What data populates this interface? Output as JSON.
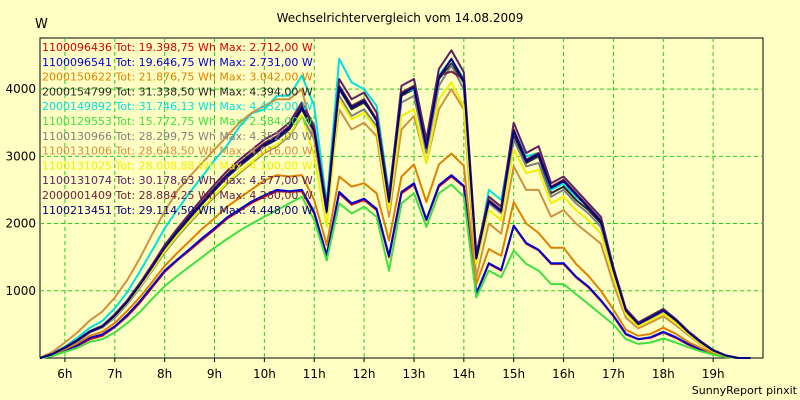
{
  "chart_data": {
    "type": "line",
    "title": "Wechselrichtervergleich vom 14.08.2009",
    "ylabel": "W",
    "footer": "SunnyReport pinxit",
    "ylim": [
      0,
      4760
    ],
    "xlim": [
      5.5,
      20.0
    ],
    "grid": true,
    "legend_position": "top-left",
    "y_ticks": [
      1000,
      2000,
      3000,
      4000
    ],
    "x_ticks": [
      {
        "value": 6,
        "label": "6h"
      },
      {
        "value": 7,
        "label": "7h"
      },
      {
        "value": 8,
        "label": "8h"
      },
      {
        "value": 9,
        "label": "9h"
      },
      {
        "value": 10,
        "label": "10h"
      },
      {
        "value": 11,
        "label": "11h"
      },
      {
        "value": 12,
        "label": "12h"
      },
      {
        "value": 13,
        "label": "13h"
      },
      {
        "value": 14,
        "label": "14h"
      },
      {
        "value": 15,
        "label": "15h"
      },
      {
        "value": 16,
        "label": "16h"
      },
      {
        "value": 17,
        "label": "17h"
      },
      {
        "value": 18,
        "label": "18h"
      },
      {
        "value": 19,
        "label": "19h"
      }
    ],
    "x": [
      5.5,
      5.75,
      6,
      6.25,
      6.5,
      6.75,
      7,
      7.25,
      7.5,
      7.75,
      8,
      8.25,
      8.5,
      8.75,
      9,
      9.25,
      9.5,
      9.75,
      10,
      10.25,
      10.5,
      10.75,
      11,
      11.25,
      11.5,
      11.75,
      12,
      12.25,
      12.5,
      12.75,
      13,
      13.25,
      13.5,
      13.75,
      14,
      14.25,
      14.5,
      14.75,
      15,
      15.25,
      15.5,
      15.75,
      16,
      16.25,
      16.5,
      16.75,
      17,
      17.25,
      17.5,
      17.75,
      18,
      18.25,
      18.5,
      18.75,
      19,
      19.25,
      19.5,
      19.75
    ],
    "series": [
      {
        "name": "1100096436 Tot: 19.398,75 Wh Max: 2.712,00 W",
        "color": "#d80000",
        "values": [
          0,
          40,
          110,
          180,
          280,
          330,
          460,
          620,
          820,
          1050,
          1280,
          1450,
          1600,
          1760,
          1910,
          2070,
          2190,
          2310,
          2400,
          2480,
          2470,
          2480,
          2150,
          1520,
          2450,
          2280,
          2350,
          2200,
          1500,
          2450,
          2580,
          2050,
          2550,
          2700,
          2550,
          950,
          1400,
          1300,
          1960,
          1700,
          1600,
          1400,
          1400,
          1200,
          1050,
          850,
          620,
          350,
          280,
          300,
          380,
          300,
          200,
          120,
          60,
          20,
          0,
          0
        ]
      },
      {
        "name": "1100096541 Tot: 19.646,75 Wh Max: 2.731,00 W",
        "color": "#0000d8",
        "values": [
          0,
          40,
          110,
          190,
          300,
          350,
          470,
          640,
          840,
          1070,
          1300,
          1460,
          1620,
          1780,
          1930,
          2090,
          2210,
          2330,
          2420,
          2500,
          2480,
          2500,
          2170,
          1530,
          2470,
          2300,
          2370,
          2220,
          1520,
          2470,
          2600,
          2060,
          2570,
          2720,
          2560,
          960,
          1410,
          1310,
          1970,
          1710,
          1610,
          1410,
          1410,
          1210,
          1060,
          860,
          630,
          360,
          280,
          310,
          390,
          310,
          210,
          130,
          60,
          20,
          0,
          0
        ]
      },
      {
        "name": "2000150622 Tot: 21.876,75 Wh Max: 3.042,00 W",
        "color": "#e08000",
        "values": [
          0,
          50,
          130,
          220,
          330,
          390,
          520,
          700,
          900,
          1130,
          1370,
          1560,
          1740,
          1920,
          2080,
          2250,
          2380,
          2510,
          2640,
          2720,
          2700,
          2720,
          2350,
          1680,
          2700,
          2550,
          2600,
          2450,
          1750,
          2700,
          2880,
          2320,
          2880,
          3040,
          2860,
          1100,
          1620,
          1520,
          2320,
          2000,
          1860,
          1640,
          1640,
          1400,
          1220,
          1000,
          720,
          420,
          330,
          360,
          450,
          360,
          240,
          150,
          70,
          25,
          0,
          0
        ]
      },
      {
        "name": "2000154799 Tot: 31.338,50 Wh Max: 4.394,00 W",
        "color": "#282828",
        "values": [
          0,
          60,
          150,
          260,
          390,
          470,
          630,
          830,
          1080,
          1350,
          1630,
          1860,
          2080,
          2290,
          2490,
          2690,
          2850,
          3000,
          3150,
          3250,
          3400,
          3700,
          3350,
          2200,
          4000,
          3700,
          3800,
          3550,
          2350,
          3900,
          4000,
          3100,
          4150,
          4380,
          4100,
          1500,
          2350,
          2200,
          3300,
          2900,
          3000,
          2450,
          2550,
          2350,
          2200,
          2000,
          1300,
          700,
          500,
          600,
          700,
          560,
          380,
          230,
          110,
          40,
          0,
          0
        ]
      },
      {
        "name": "2000149892 Tot: 31.746,13 Wh Max: 4.432,00 W",
        "color": "#00e0e0",
        "values": [
          0,
          70,
          170,
          300,
          450,
          550,
          740,
          980,
          1280,
          1600,
          1930,
          2200,
          2460,
          2700,
          2940,
          3160,
          3440,
          3640,
          3700,
          3900,
          3900,
          4200,
          3750,
          2300,
          4450,
          4100,
          4000,
          3750,
          2450,
          3950,
          4000,
          3150,
          4200,
          4450,
          4150,
          1450,
          2500,
          2350,
          3380,
          3000,
          3050,
          2500,
          2600,
          2400,
          2250,
          2050,
          1350,
          720,
          520,
          620,
          720,
          570,
          390,
          240,
          110,
          40,
          0,
          0
        ]
      },
      {
        "name": "1100129553 Tot: 15.772,75 Wh Max: 2.584,00 W",
        "color": "#40e040",
        "values": [
          0,
          30,
          90,
          150,
          240,
          280,
          380,
          520,
          680,
          880,
          1070,
          1220,
          1360,
          1500,
          1640,
          1770,
          1890,
          2000,
          2100,
          2200,
          2300,
          2400,
          2050,
          1450,
          2300,
          2150,
          2250,
          2100,
          1300,
          2300,
          2450,
          1950,
          2450,
          2580,
          2400,
          900,
          1300,
          1200,
          1600,
          1400,
          1300,
          1100,
          1100,
          950,
          800,
          650,
          500,
          280,
          210,
          230,
          290,
          230,
          160,
          100,
          50,
          15,
          0,
          0
        ]
      },
      {
        "name": "1100130966 Tot: 28.299,75 Wh Max: 4.352,00 W",
        "color": "#808080",
        "values": [
          0,
          60,
          150,
          250,
          380,
          450,
          600,
          800,
          1040,
          1300,
          1570,
          1800,
          2010,
          2210,
          2400,
          2590,
          2750,
          2900,
          3050,
          3150,
          3300,
          3600,
          3250,
          2150,
          3900,
          3600,
          3700,
          3450,
          2300,
          3800,
          3900,
          3050,
          4050,
          4350,
          4000,
          1450,
          2300,
          2150,
          3250,
          2850,
          2900,
          2400,
          2500,
          2300,
          2150,
          1950,
          1250,
          680,
          490,
          580,
          680,
          540,
          370,
          220,
          100,
          35,
          0,
          0
        ]
      },
      {
        "name": "1100131006 Tot: 28.648,50 Wh Max: 4.016,00 W",
        "color": "#d09040",
        "values": [
          0,
          90,
          230,
          380,
          560,
          690,
          900,
          1160,
          1480,
          1840,
          2180,
          2480,
          2700,
          2900,
          3100,
          3300,
          3500,
          3650,
          3750,
          3850,
          3850,
          4000,
          3250,
          2200,
          3700,
          3400,
          3500,
          3300,
          2100,
          3400,
          3600,
          2900,
          3700,
          4000,
          3700,
          1200,
          2000,
          1850,
          2850,
          2500,
          2500,
          2100,
          2200,
          2000,
          1850,
          1700,
          1100,
          600,
          440,
          530,
          620,
          490,
          340,
          200,
          90,
          30,
          0,
          0
        ]
      },
      {
        "name": "1100131025 Tot: 28.008,88 Wh Max: 4.100,00 W",
        "color": "#f0f000",
        "values": [
          0,
          60,
          150,
          260,
          390,
          460,
          620,
          820,
          1060,
          1320,
          1590,
          1820,
          2030,
          2230,
          2420,
          2610,
          2770,
          2920,
          3070,
          3170,
          3320,
          3620,
          3000,
          1950,
          3850,
          3550,
          3650,
          3400,
          2200,
          3600,
          3700,
          2900,
          3850,
          4100,
          3750,
          1400,
          2200,
          2050,
          3100,
          2750,
          2800,
          2300,
          2400,
          2200,
          2050,
          1850,
          1200,
          650,
          470,
          560,
          660,
          520,
          360,
          210,
          100,
          35,
          0,
          0
        ]
      },
      {
        "name": "1100131074 Tot: 30.178,63 Wh Max: 4.577,00 W",
        "color": "#602060",
        "values": [
          0,
          60,
          160,
          270,
          400,
          480,
          650,
          860,
          1110,
          1390,
          1680,
          1920,
          2150,
          2370,
          2580,
          2780,
          2950,
          3100,
          3250,
          3350,
          3500,
          3800,
          3450,
          2250,
          4150,
          3850,
          3950,
          3650,
          2400,
          4050,
          4150,
          3250,
          4300,
          4577,
          4250,
          1550,
          2400,
          2250,
          3500,
          3050,
          3150,
          2600,
          2700,
          2500,
          2300,
          2100,
          1350,
          730,
          530,
          630,
          730,
          580,
          400,
          250,
          120,
          40,
          0,
          0
        ]
      },
      {
        "name": "2000001409 Tot: 28.884,25 Wh Max: 4.260,00 W",
        "color": "#702040",
        "values": [
          0,
          60,
          155,
          265,
          395,
          470,
          640,
          845,
          1095,
          1370,
          1650,
          1890,
          2110,
          2320,
          2530,
          2730,
          2900,
          3050,
          3200,
          3300,
          3450,
          3750,
          3400,
          2200,
          4050,
          3750,
          3850,
          3550,
          2350,
          3950,
          4050,
          3150,
          4200,
          4260,
          4150,
          1500,
          2350,
          2200,
          3400,
          2950,
          3050,
          2550,
          2650,
          2450,
          2250,
          2050,
          1320,
          710,
          510,
          610,
          710,
          570,
          390,
          240,
          115,
          38,
          0,
          0
        ]
      },
      {
        "name": "1100213451 Tot: 29.114,50 Wh Max: 4.448,00 W",
        "color": "#000080",
        "values": [
          0,
          60,
          150,
          260,
          390,
          465,
          630,
          835,
          1085,
          1355,
          1640,
          1875,
          2095,
          2305,
          2510,
          2710,
          2875,
          3025,
          3175,
          3275,
          3425,
          3725,
          3375,
          2175,
          4025,
          3725,
          3825,
          3525,
          2325,
          3925,
          4025,
          3125,
          4175,
          4448,
          4125,
          1480,
          2330,
          2180,
          3380,
          2930,
          3030,
          2530,
          2630,
          2430,
          2230,
          2030,
          1310,
          705,
          505,
          605,
          705,
          565,
          385,
          235,
          112,
          37,
          0,
          0
        ]
      }
    ]
  }
}
